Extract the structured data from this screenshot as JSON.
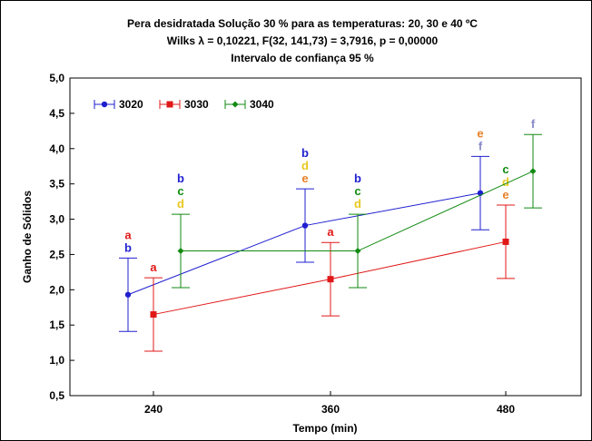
{
  "chart_data": {
    "type": "line",
    "title_lines": [
      "Pera desidratada Solução 30 % para as temperaturas: 20, 30 e 40 ºC",
      "Wilks λ = 0,10221, F(32, 141,73) = 3,7916, p = 0,00000",
      "Intervalo de confiança 95 %"
    ],
    "xlabel": "Tempo (min)",
    "ylabel": "Ganho de Sólidos",
    "categories": [
      "240",
      "360",
      "480"
    ],
    "ylim": [
      0.5,
      5.0
    ],
    "yticks": [
      "0,5",
      "1,0",
      "1,5",
      "2,0",
      "2,5",
      "3,0",
      "3,5",
      "4,0",
      "4,5",
      "5,0"
    ],
    "grid": false,
    "legend_position": "top-left",
    "series": [
      {
        "name": "3020",
        "color": "#1f1fd0",
        "marker": "circle",
        "values": [
          1.93,
          2.91,
          3.37
        ],
        "ci_low": [
          1.41,
          2.39,
          2.85
        ],
        "ci_high": [
          2.45,
          3.43,
          3.89
        ],
        "letters": [
          [
            "a",
            "b"
          ],
          [
            "b",
            "d",
            "e"
          ],
          [
            "e",
            "f"
          ]
        ]
      },
      {
        "name": "3030",
        "color": "#e01818",
        "marker": "square",
        "values": [
          1.65,
          2.15,
          2.68
        ],
        "ci_low": [
          1.13,
          1.63,
          2.16
        ],
        "ci_high": [
          2.17,
          2.67,
          3.2
        ],
        "letters": [
          [
            "a"
          ],
          [
            "a"
          ],
          [
            "c",
            "d",
            "e"
          ]
        ]
      },
      {
        "name": "3040",
        "color": "#128a12",
        "marker": "diamond",
        "values": [
          2.55,
          2.55,
          3.68
        ],
        "ci_low": [
          2.03,
          2.03,
          3.16
        ],
        "ci_high": [
          3.07,
          3.07,
          4.2
        ],
        "letters": [
          [
            "b",
            "c",
            "d"
          ],
          [
            "b",
            "c",
            "d"
          ],
          [
            "f"
          ]
        ]
      }
    ],
    "letter_colors": {
      "a": "#e01818",
      "b": "#1f1fd0",
      "c": "#128a12",
      "d": "#e8c820",
      "e": "#e8822a",
      "f": "#8a8ac8"
    }
  }
}
